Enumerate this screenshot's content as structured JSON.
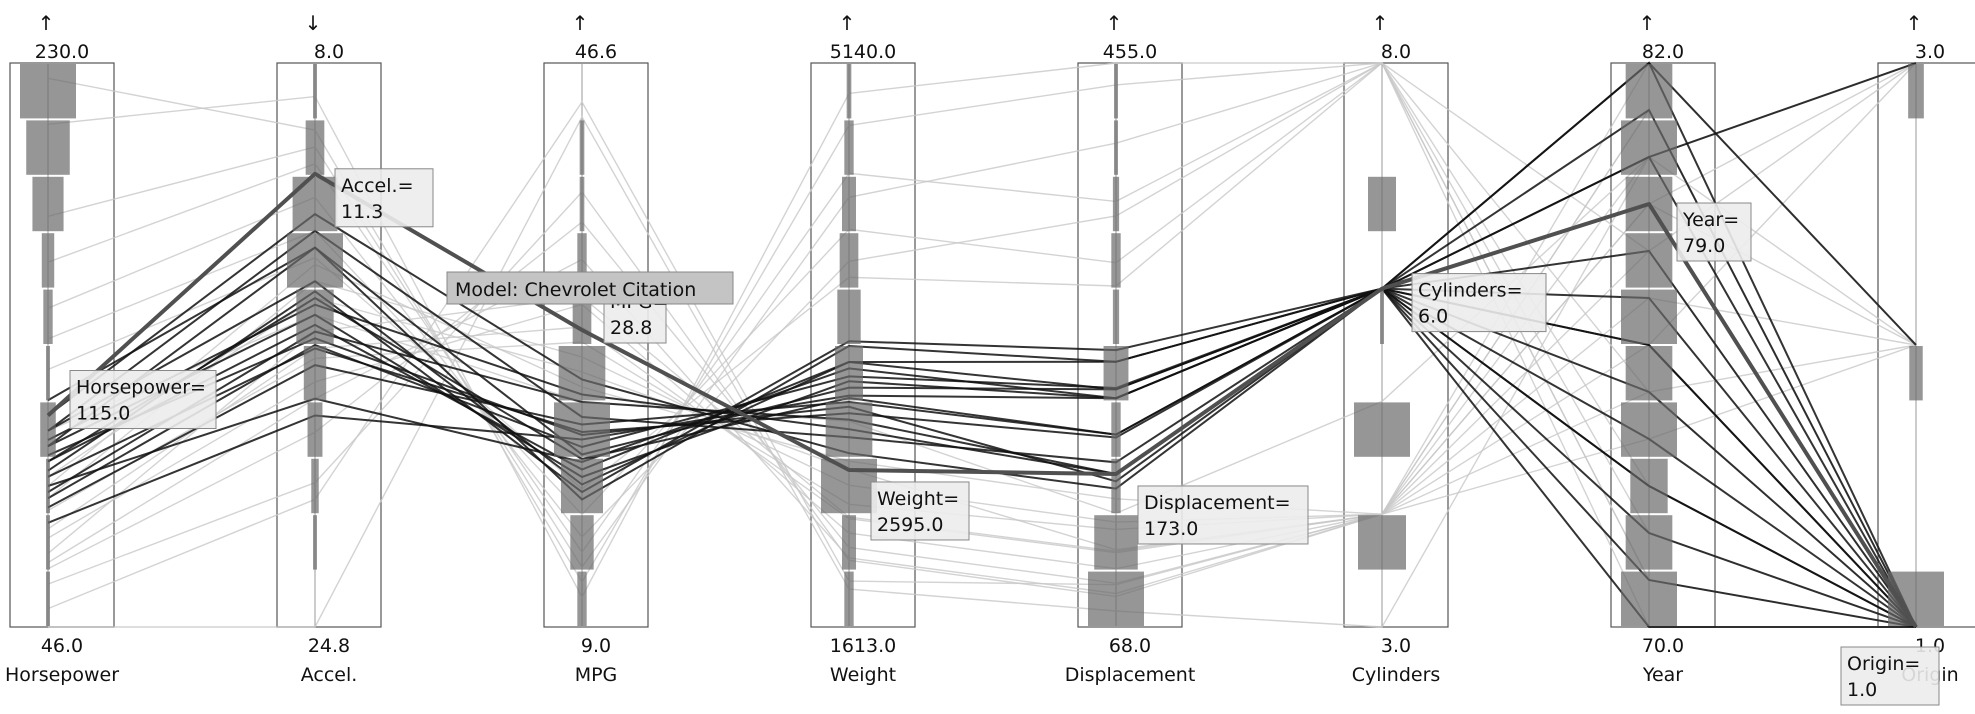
{
  "chart_data": {
    "type": "parallel-coordinates",
    "title": "",
    "grid": false,
    "highlight_color": "#101010",
    "context_color": "#c8c8c8",
    "selected_color": "#505050",
    "axes": [
      {
        "name": "Horsepower",
        "min": 46.0,
        "max": 230.0,
        "min_label": "46.0",
        "max_label": "230.0",
        "direction": "up",
        "histogram": [
          1,
          1,
          1,
          5,
          1,
          3,
          4,
          10,
          14,
          18
        ]
      },
      {
        "name": "Accel.",
        "min": 8.0,
        "max": 24.8,
        "min_label": "24.8",
        "max_label": "8.0",
        "direction": "down",
        "histogram": [
          0,
          1,
          2,
          4,
          6,
          10,
          15,
          12,
          5,
          1
        ]
      },
      {
        "name": "MPG",
        "min": 9.0,
        "max": 46.6,
        "min_label": "9.0",
        "max_label": "46.6",
        "direction": "up",
        "histogram": [
          2,
          5,
          9,
          12,
          10,
          4,
          2,
          1,
          1,
          0
        ]
      },
      {
        "name": "Weight",
        "min": 1613.0,
        "max": 5140.0,
        "min_label": "1613.0",
        "max_label": "5140.0",
        "direction": "up",
        "histogram": [
          2,
          3,
          12,
          10,
          6,
          5,
          4,
          3,
          2,
          1
        ]
      },
      {
        "name": "Displacement",
        "min": 68.0,
        "max": 455.0,
        "min_label": "68.0",
        "max_label": "455.0",
        "direction": "up",
        "histogram": [
          18,
          14,
          3,
          3,
          8,
          2,
          3,
          2,
          1,
          1
        ]
      },
      {
        "name": "Cylinders",
        "min": 3.0,
        "max": 8.0,
        "min_label": "3.0",
        "max_label": "8.0",
        "direction": "up",
        "histogram": [
          0,
          12,
          0,
          14,
          0,
          1,
          0,
          7,
          0,
          0
        ]
      },
      {
        "name": "Year",
        "min": 70.0,
        "max": 82.0,
        "min_label": "70.0",
        "max_label": "82.0",
        "direction": "up",
        "histogram": [
          6,
          5,
          4,
          6,
          5,
          6,
          5,
          5,
          6,
          5
        ]
      },
      {
        "name": "Origin",
        "min": 1.0,
        "max": 3.0,
        "min_label": "1.0",
        "max_label": "3.0",
        "direction": "up",
        "histogram": [
          25,
          0,
          0,
          0,
          6,
          0,
          0,
          0,
          0,
          7
        ]
      }
    ],
    "selected_record": {
      "title": "Model: Chevrolet Citation",
      "values": [
        115.0,
        11.3,
        28.8,
        2595.0,
        173.0,
        6.0,
        79.0,
        1.0
      ],
      "labels": [
        [
          "Horsepower=",
          "115.0"
        ],
        [
          "Accel.=",
          "11.3"
        ],
        [
          "MPG=",
          "28.8"
        ],
        [
          "Weight=",
          "2595.0"
        ],
        [
          "Displacement=",
          "173.0"
        ],
        [
          "Cylinders=",
          "6.0"
        ],
        [
          "Year=",
          "79.0"
        ],
        [
          "Origin=",
          "1.0"
        ]
      ]
    },
    "highlighted_records": [
      [
        100,
        15.0,
        20.2,
        3045,
        200,
        6,
        76,
        1
      ],
      [
        105,
        15.5,
        19.0,
        3150,
        225,
        6,
        73,
        1
      ],
      [
        110,
        14.5,
        18.5,
        3270,
        231,
        6,
        78,
        1
      ],
      [
        90,
        16.0,
        24.0,
        2910,
        173,
        6,
        80,
        1
      ],
      [
        95,
        16.5,
        22.0,
        2950,
        198,
        6,
        74,
        1
      ],
      [
        105,
        13.5,
        20.5,
        3110,
        231,
        6,
        77,
        1
      ],
      [
        85,
        17.0,
        22.5,
        3020,
        200,
        6,
        72,
        1
      ],
      [
        100,
        15.8,
        19.5,
        3270,
        250,
        6,
        71,
        1
      ],
      [
        110,
        13.0,
        23.0,
        2800,
        181,
        6,
        81,
        1
      ],
      [
        88,
        16.4,
        21.0,
        3180,
        232,
        6,
        75,
        1
      ],
      [
        97,
        14.8,
        18.0,
        3400,
        258,
        6,
        70,
        1
      ],
      [
        115,
        12.5,
        25.5,
        2700,
        163,
        6,
        82,
        1
      ],
      [
        92,
        18.0,
        20.0,
        3230,
        225,
        6,
        79,
        1
      ],
      [
        120,
        13.5,
        17.5,
        3370,
        250,
        6,
        76,
        1
      ],
      [
        80,
        18.5,
        21.5,
        3060,
        225,
        6,
        73,
        1
      ],
      [
        107,
        15.2,
        24.5,
        2850,
        173,
        6,
        82,
        2
      ],
      [
        102,
        16.2,
        21.8,
        2990,
        168,
        6,
        80,
        3
      ]
    ],
    "context_records": [
      [
        65,
        19.0,
        36.0,
        2110,
        98,
        4,
        81,
        1
      ],
      [
        70,
        16.0,
        31.0,
        2300,
        120,
        4,
        79,
        3
      ],
      [
        150,
        12.0,
        15.0,
        3900,
        350,
        8,
        72,
        1
      ],
      [
        180,
        10.5,
        13.0,
        4300,
        400,
        8,
        71,
        1
      ],
      [
        88,
        14.5,
        27.0,
        2500,
        140,
        4,
        77,
        2
      ],
      [
        52,
        21.0,
        44.0,
        1900,
        97,
        4,
        82,
        2
      ],
      [
        75,
        17.5,
        30.5,
        2200,
        108,
        4,
        76,
        3
      ],
      [
        140,
        13.0,
        16.5,
        4100,
        318,
        8,
        75,
        1
      ],
      [
        95,
        15.0,
        26.0,
        2600,
        121,
        4,
        74,
        2
      ],
      [
        67,
        18.0,
        33.5,
        2045,
        91,
        4,
        80,
        3
      ],
      [
        165,
        11.0,
        14.0,
        4450,
        360,
        8,
        73,
        1
      ],
      [
        210,
        9.0,
        11.0,
        4950,
        455,
        8,
        70,
        1
      ],
      [
        84,
        16.8,
        28.0,
        2380,
        135,
        4,
        81,
        1
      ],
      [
        60,
        20.5,
        38.0,
        2030,
        89,
        4,
        79,
        2
      ],
      [
        130,
        13.8,
        18.2,
        3800,
        302,
        8,
        78,
        1
      ],
      [
        110,
        15.5,
        24.0,
        2900,
        146,
        5,
        80,
        2
      ],
      [
        78,
        16.5,
        29.0,
        2290,
        119,
        4,
        78,
        3
      ],
      [
        225,
        10.0,
        12.0,
        4750,
        440,
        8,
        71,
        1
      ],
      [
        46,
        24.8,
        43.0,
        1850,
        79,
        3,
        80,
        3
      ],
      [
        92,
        14.0,
        25.0,
        2650,
        156,
        4,
        75,
        2
      ]
    ]
  }
}
